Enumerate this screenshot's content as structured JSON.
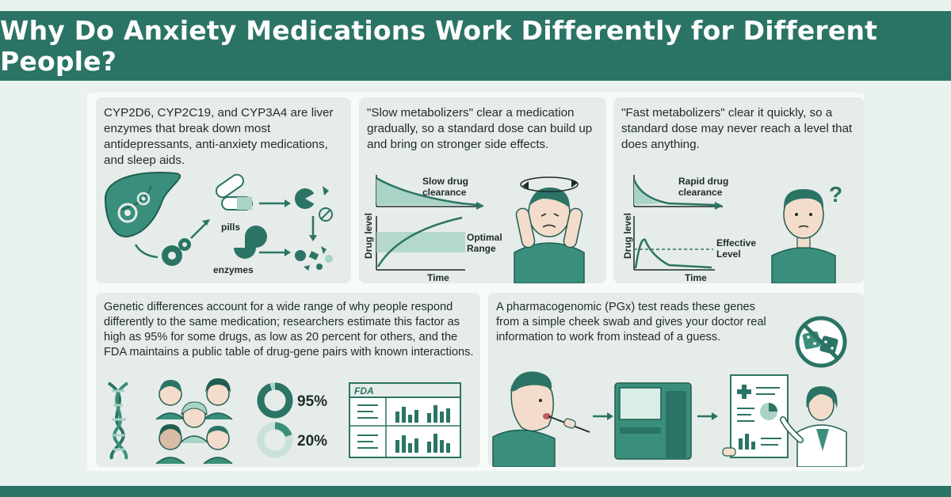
{
  "title": "Why Do Anxiety Medications Work Differently for Different People?",
  "panels": {
    "enzymes": {
      "text": "CYP2D6, CYP2C19, and CYP3A4 are liver enzymes that break down most antidepressants, anti-anxiety medications, and sleep aids.",
      "pills_label": "pills",
      "enzymes_label": "enzymes"
    },
    "slow": {
      "text": "\"Slow metabolizers\" clear a medication gradually, so a standard dose can build up and bring on stronger side effects.",
      "clearance_label_1": "Slow drug",
      "clearance_label_2": "clearance",
      "ylabel": "Drug level",
      "xlabel": "Time",
      "range_label_1": "Optimal",
      "range_label_2": "Range"
    },
    "fast": {
      "text": "\"Fast metabolizers\" clear it quickly, so a standard dose may never reach a level that does anything.",
      "clearance_label_1": "Rapid drug",
      "clearance_label_2": "clearance",
      "ylabel": "Drug level",
      "xlabel": "Time",
      "level_label_1": "Effective",
      "level_label_2": "Level",
      "question_mark": "?"
    },
    "genetics": {
      "text": "Genetic differences account for a wide range of why people respond differently to the same medication; researchers estimate this factor as high as 95% for some drugs, as low as 20 percent for others, and the FDA maintains a public table of drug-gene pairs with known interactions.",
      "high_value": 95,
      "high_label": "95%",
      "low_value": 20,
      "low_label": "20%",
      "fda_logo": "FDA"
    },
    "pgx": {
      "text": "A pharmacogenomic (PGx) test reads these genes from a simple cheek swab and gives your doctor real information to work from instead of a guess."
    }
  },
  "colors": {
    "primary": "#2b7465",
    "accent": "#3a8f7c",
    "light": "#a9d3c6",
    "skin": "#f3dccb",
    "panel": "#e6ece9"
  }
}
